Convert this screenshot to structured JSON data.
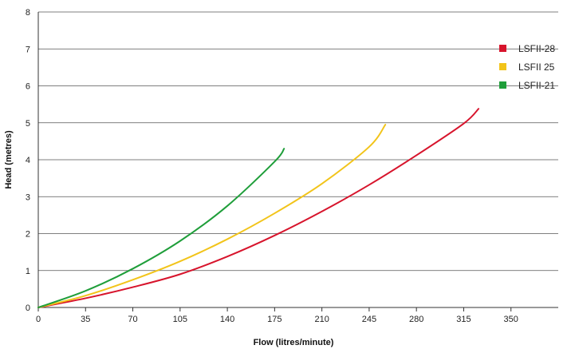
{
  "chart_data": {
    "type": "line",
    "title": "",
    "xlabel": "Flow (litres/minute)",
    "ylabel": "Head (metres)",
    "xlim": [
      0,
      385
    ],
    "ylim": [
      0,
      8
    ],
    "x_ticks": [
      0,
      35,
      70,
      105,
      140,
      175,
      210,
      245,
      280,
      315,
      350
    ],
    "y_ticks": [
      0,
      1,
      2,
      3,
      4,
      5,
      6,
      7,
      8
    ],
    "grid": "horizontal",
    "legend_position": "right",
    "series": [
      {
        "name": "LSFII-28",
        "color": "#d7142c",
        "x": [
          0,
          35,
          70,
          105,
          140,
          175,
          210,
          245,
          280,
          315,
          326
        ],
        "y": [
          0,
          0.25,
          0.55,
          0.9,
          1.38,
          1.95,
          2.6,
          3.32,
          4.12,
          4.98,
          5.38
        ]
      },
      {
        "name": "LSFII 25",
        "color": "#f2c41a",
        "x": [
          0,
          35,
          70,
          105,
          140,
          175,
          210,
          245,
          257
        ],
        "y": [
          0,
          0.32,
          0.75,
          1.25,
          1.85,
          2.55,
          3.35,
          4.35,
          4.95
        ]
      },
      {
        "name": "LSFII-21",
        "color": "#1f9e3a",
        "x": [
          0,
          35,
          70,
          105,
          140,
          175,
          182
        ],
        "y": [
          0,
          0.45,
          1.05,
          1.8,
          2.75,
          3.95,
          4.3
        ]
      }
    ]
  }
}
